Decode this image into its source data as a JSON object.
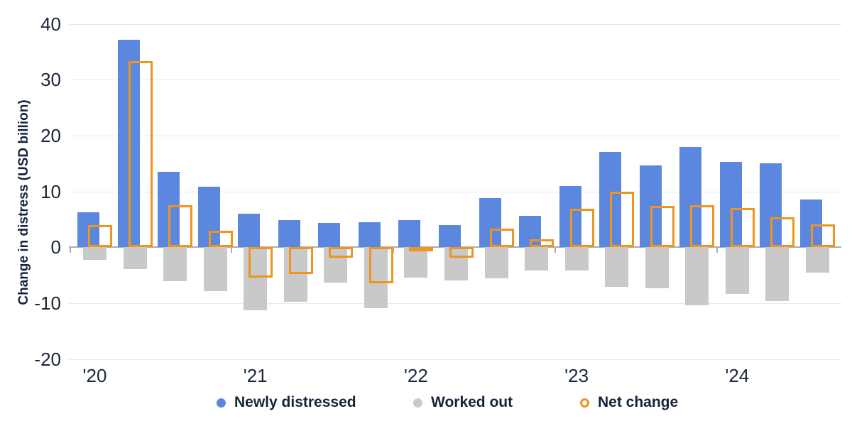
{
  "chart_data": {
    "type": "bar",
    "title": "",
    "ylabel": "Change in distress (USD billion)",
    "xlabel": "",
    "ylim": [
      -20,
      40
    ],
    "yticks": [
      40,
      30,
      20,
      10,
      0,
      -10,
      -20
    ],
    "grid": true,
    "legend_position": "bottom",
    "categories": [
      "2020 Q1",
      "2020 Q2",
      "2020 Q3",
      "2020 Q4",
      "2021 Q1",
      "2021 Q2",
      "2021 Q3",
      "2021 Q4",
      "2022 Q1",
      "2022 Q2",
      "2022 Q3",
      "2022 Q4",
      "2023 Q1",
      "2023 Q2",
      "2023 Q3",
      "2023 Q4",
      "2024 Q1",
      "2024 Q2",
      "2024 Q3"
    ],
    "x_year_labels": [
      "'20",
      "'21",
      "'22",
      "'23",
      "'24"
    ],
    "series": [
      {
        "name": "Newly distressed",
        "style": "filled",
        "color": "#5b87de",
        "values": [
          6.3,
          37.2,
          13.5,
          10.8,
          6.0,
          4.9,
          4.4,
          4.5,
          4.9,
          4.0,
          8.8,
          5.6,
          11.0,
          17.1,
          14.7,
          17.9,
          15.3,
          15.0,
          8.6
        ]
      },
      {
        "name": "Worked out",
        "style": "filled",
        "color": "#c9c9c9",
        "values": [
          -2.3,
          -3.9,
          -6.0,
          -7.9,
          -11.3,
          -9.7,
          -6.3,
          -10.9,
          -5.4,
          -5.9,
          -5.5,
          -4.2,
          -4.1,
          -7.1,
          -7.3,
          -10.4,
          -8.3,
          -9.6,
          -4.5
        ]
      },
      {
        "name": "Net change",
        "style": "outline",
        "color": "#ef941f",
        "values": [
          4.0,
          33.3,
          7.5,
          2.9,
          -5.4,
          -4.8,
          -1.9,
          -6.4,
          -0.5,
          -1.9,
          3.3,
          1.4,
          6.9,
          10.0,
          7.4,
          7.5,
          7.0,
          5.4,
          4.1
        ]
      }
    ]
  },
  "legend": {
    "items": [
      {
        "label": "Newly distressed"
      },
      {
        "label": "Worked out"
      },
      {
        "label": "Net change"
      }
    ]
  },
  "colors": {
    "newly_distressed": "#5b87de",
    "worked_out": "#c9c9c9",
    "net_change": "#ef941f",
    "gridline": "#e9e9ea",
    "zero_line": "#a9adb5",
    "text": "#16233b"
  }
}
